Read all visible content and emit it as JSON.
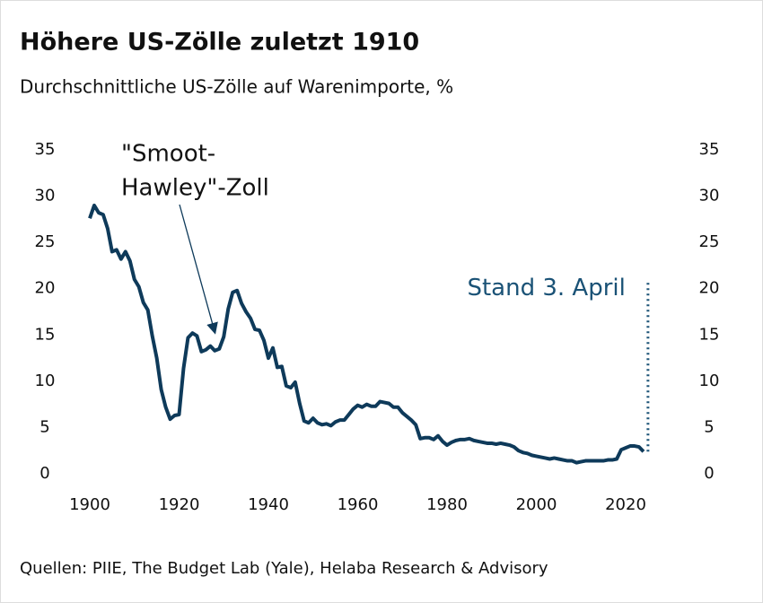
{
  "chart_data": {
    "type": "line",
    "title": "Höhere US-Zölle zuletzt 1910",
    "subtitle": "Durchschnittliche US-Zölle auf Warenimporte, %",
    "source": "Quellen: PIIE, The Budget Lab (Yale), Helaba Research & Advisory",
    "x": [
      1900,
      1901,
      1902,
      1903,
      1904,
      1905,
      1906,
      1907,
      1908,
      1909,
      1910,
      1911,
      1912,
      1913,
      1914,
      1915,
      1916,
      1917,
      1918,
      1919,
      1920,
      1921,
      1922,
      1923,
      1924,
      1925,
      1926,
      1927,
      1928,
      1929,
      1930,
      1931,
      1932,
      1933,
      1934,
      1935,
      1936,
      1937,
      1938,
      1939,
      1940,
      1941,
      1942,
      1943,
      1944,
      1945,
      1946,
      1947,
      1948,
      1949,
      1950,
      1951,
      1952,
      1953,
      1954,
      1955,
      1956,
      1957,
      1958,
      1959,
      1960,
      1961,
      1962,
      1963,
      1964,
      1965,
      1966,
      1967,
      1968,
      1969,
      1970,
      1971,
      1972,
      1973,
      1974,
      1975,
      1976,
      1977,
      1978,
      1979,
      1980,
      1981,
      1982,
      1983,
      1984,
      1985,
      1986,
      1987,
      1988,
      1989,
      1990,
      1991,
      1992,
      1993,
      1994,
      1995,
      1996,
      1997,
      1998,
      1999,
      2000,
      2001,
      2002,
      2003,
      2004,
      2005,
      2006,
      2007,
      2008,
      2009,
      2010,
      2011,
      2012,
      2013,
      2014,
      2015,
      2016,
      2017,
      2018,
      2019,
      2020,
      2021,
      2022,
      2023,
      2024
    ],
    "series": [
      {
        "color": "#0e3a5a",
        "values": [
          27.6,
          29.0,
          28.2,
          28.0,
          26.5,
          24.0,
          24.2,
          23.2,
          24.0,
          23.0,
          21.0,
          20.2,
          18.5,
          17.7,
          14.9,
          12.5,
          9.1,
          7.2,
          5.9,
          6.3,
          6.4,
          11.4,
          14.7,
          15.2,
          14.9,
          13.2,
          13.4,
          13.8,
          13.3,
          13.5,
          14.8,
          17.8,
          19.6,
          19.8,
          18.4,
          17.5,
          16.8,
          15.6,
          15.5,
          14.4,
          12.5,
          13.6,
          11.5,
          11.6,
          9.5,
          9.3,
          9.9,
          7.6,
          5.7,
          5.5,
          6.0,
          5.5,
          5.3,
          5.4,
          5.2,
          5.6,
          5.8,
          5.8,
          6.4,
          7.0,
          7.4,
          7.2,
          7.5,
          7.3,
          7.3,
          7.8,
          7.7,
          7.6,
          7.2,
          7.2,
          6.6,
          6.2,
          5.8,
          5.3,
          3.8,
          3.9,
          3.9,
          3.7,
          4.1,
          3.5,
          3.1,
          3.4,
          3.6,
          3.7,
          3.7,
          3.8,
          3.6,
          3.5,
          3.4,
          3.3,
          3.3,
          3.2,
          3.3,
          3.2,
          3.1,
          2.9,
          2.5,
          2.3,
          2.2,
          2.0,
          1.9,
          1.8,
          1.7,
          1.6,
          1.7,
          1.6,
          1.5,
          1.4,
          1.4,
          1.2,
          1.3,
          1.4,
          1.4,
          1.4,
          1.4,
          1.4,
          1.5,
          1.5,
          1.6,
          2.6,
          2.8,
          3.0,
          3.0,
          2.9,
          2.4
        ]
      }
    ],
    "projection": {
      "label": "Stand 3. April",
      "x": 2025,
      "values": [
        2.4,
        21
      ],
      "color": "#1a5276"
    },
    "annotation": {
      "lines": [
        "\"Smoot-",
        "Hawley\"-Zoll"
      ],
      "x": 1928,
      "y": 15.3
    },
    "xlim": [
      1900,
      2020
    ],
    "xticks": [
      1900,
      1920,
      1940,
      1960,
      1980,
      2000,
      2020
    ],
    "ylim": [
      0,
      35
    ],
    "yticks": [
      0,
      5,
      10,
      15,
      20,
      25,
      30,
      35
    ],
    "y2lim": [
      0,
      35
    ],
    "y2ticks": [
      0,
      5,
      10,
      15,
      20,
      25,
      30,
      35
    ],
    "grid": false
  }
}
